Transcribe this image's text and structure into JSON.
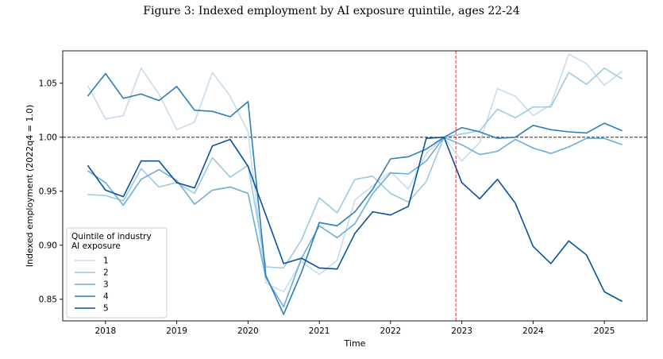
{
  "figure_title": "Figure 3: Indexed employment by AI exposure quintile, ages 22-24",
  "colors": {
    "q1": "#c6dbef",
    "q2": "#9ecae1",
    "q3": "#6baed6",
    "q4": "#2c7fb8",
    "q5": "#08519c",
    "vline": "#e31a1c",
    "hline": "#000000"
  },
  "chart_data": {
    "type": "line",
    "title": "Figure 3: Indexed employment by AI exposure quintile, ages 22-24",
    "xlabel": "Time",
    "ylabel": "Indexed employment (2022q4 = 1.0)",
    "xlim": [
      2017.4,
      2025.6
    ],
    "ylim": [
      0.83,
      1.08
    ],
    "x_ticks": [
      2018,
      2019,
      2020,
      2021,
      2022,
      2023,
      2024,
      2025
    ],
    "y_ticks": [
      0.85,
      0.9,
      0.95,
      1.0,
      1.05
    ],
    "y_tick_labels": [
      "0.85",
      "0.90",
      "0.95",
      "1.00",
      "1.05"
    ],
    "x_tick_labels": [
      "2018",
      "2019",
      "2020",
      "2021",
      "2022",
      "2023",
      "2024",
      "2025"
    ],
    "reference_hline": 1.0,
    "reference_vline": 2022.917,
    "legend_title": "Quintile of industry\nAI exposure",
    "legend_position": "lower-left",
    "x": [
      2017.75,
      2018.0,
      2018.25,
      2018.5,
      2018.75,
      2019.0,
      2019.25,
      2019.5,
      2019.75,
      2020.0,
      2020.25,
      2020.5,
      2020.75,
      2021.0,
      2021.25,
      2021.5,
      2021.75,
      2022.0,
      2022.25,
      2022.5,
      2022.75,
      2023.0,
      2023.25,
      2023.5,
      2023.75,
      2024.0,
      2024.25,
      2024.5,
      2024.75,
      2025.0,
      2025.25
    ],
    "series": [
      {
        "name": "1",
        "values": [
          1.048,
          1.017,
          1.02,
          1.064,
          1.04,
          1.007,
          1.014,
          1.06,
          1.038,
          1.005,
          0.865,
          0.857,
          0.885,
          0.873,
          0.886,
          0.942,
          0.955,
          0.968,
          0.952,
          0.985,
          1.0,
          0.978,
          0.995,
          1.045,
          1.038,
          1.02,
          1.03,
          1.077,
          1.068,
          1.048,
          1.061
        ]
      },
      {
        "name": "2",
        "values": [
          0.947,
          0.946,
          0.941,
          0.971,
          0.954,
          0.958,
          0.948,
          0.981,
          0.963,
          0.974,
          0.88,
          0.879,
          0.905,
          0.944,
          0.93,
          0.961,
          0.964,
          0.948,
          0.94,
          0.959,
          1.0,
          1.003,
          1.006,
          1.026,
          1.018,
          1.028,
          1.028,
          1.06,
          1.049,
          1.064,
          1.054
        ]
      },
      {
        "name": "3",
        "values": [
          0.969,
          0.958,
          0.937,
          0.961,
          0.97,
          0.96,
          0.938,
          0.951,
          0.954,
          0.948,
          0.87,
          0.843,
          0.888,
          0.918,
          0.907,
          0.92,
          0.948,
          0.967,
          0.966,
          0.978,
          1.0,
          0.993,
          0.984,
          0.987,
          0.998,
          0.99,
          0.985,
          0.991,
          0.999,
          0.999,
          0.993
        ]
      },
      {
        "name": "4",
        "values": [
          1.038,
          1.059,
          1.036,
          1.04,
          1.034,
          1.047,
          1.025,
          1.024,
          1.019,
          1.033,
          0.872,
          0.836,
          0.875,
          0.921,
          0.918,
          0.931,
          0.952,
          0.98,
          0.982,
          0.989,
          1.0,
          1.009,
          1.005,
          0.999,
          1.0,
          1.011,
          1.007,
          1.005,
          1.004,
          1.013,
          1.006
        ]
      },
      {
        "name": "5",
        "values": [
          0.974,
          0.951,
          0.945,
          0.978,
          0.978,
          0.958,
          0.953,
          0.992,
          0.998,
          0.973,
          0.928,
          0.883,
          0.888,
          0.879,
          0.878,
          0.911,
          0.931,
          0.928,
          0.936,
          0.999,
          1.0,
          0.958,
          0.943,
          0.961,
          0.939,
          0.899,
          0.883,
          0.904,
          0.891,
          0.857,
          0.848
        ]
      }
    ]
  }
}
